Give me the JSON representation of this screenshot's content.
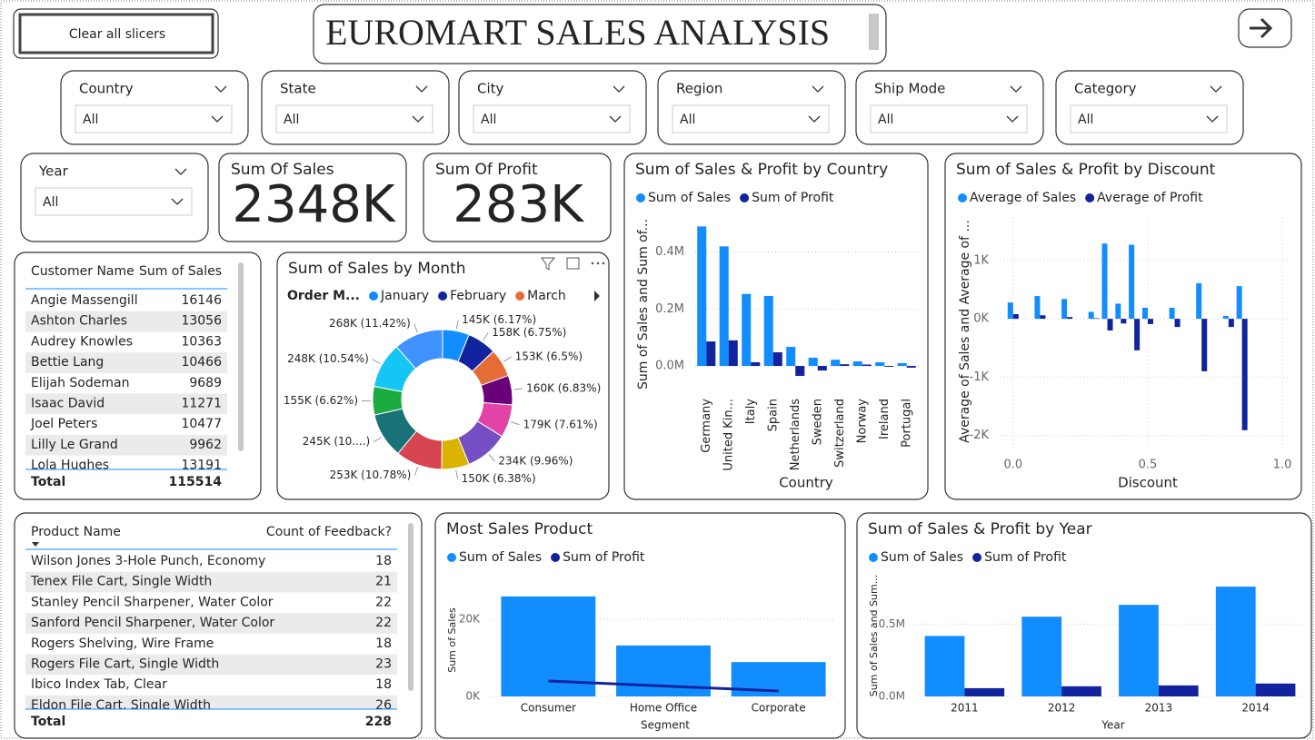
{
  "header": {
    "clear_button": "Clear all slicers",
    "title": "EUROMART SALES ANALYSIS"
  },
  "slicers": [
    {
      "label": "Country",
      "value": "All"
    },
    {
      "label": "State",
      "value": "All"
    },
    {
      "label": "City",
      "value": "All"
    },
    {
      "label": "Region",
      "value": "All"
    },
    {
      "label": "Ship Mode",
      "value": "All"
    },
    {
      "label": "Category",
      "value": "All"
    },
    {
      "label": "Year",
      "value": "All"
    }
  ],
  "cards": [
    {
      "label": "Sum Of Sales",
      "value": "2348K"
    },
    {
      "label": "Sum Of Profit",
      "value": "283K"
    }
  ],
  "customer_table": {
    "columns": [
      "Customer Name",
      "Sum of Sales"
    ],
    "rows": [
      [
        "Angie Massengill",
        16146
      ],
      [
        "Ashton Charles",
        13056
      ],
      [
        "Audrey Knowles",
        10363
      ],
      [
        "Bettie Lang",
        10466
      ],
      [
        "Elijah Sodeman",
        9689
      ],
      [
        "Isaac David",
        11271
      ],
      [
        "Joel Peters",
        10477
      ],
      [
        "Lilly Le Grand",
        9962
      ],
      [
        "Lola Hughes",
        13191
      ]
    ],
    "total_label": "Total",
    "total": 115514
  },
  "product_table": {
    "columns": [
      "Product Name",
      "Count of Feedback?"
    ],
    "rows": [
      [
        "Wilson Jones 3-Hole Punch, Economy",
        18
      ],
      [
        "Tenex File Cart, Single Width",
        21
      ],
      [
        "Stanley Pencil Sharpener, Water Color",
        22
      ],
      [
        "Sanford Pencil Sharpener, Water Color",
        22
      ],
      [
        "Rogers Shelving, Wire Frame",
        18
      ],
      [
        "Rogers File Cart, Single Width",
        23
      ],
      [
        "Ibico Index Tab, Clear",
        18
      ],
      [
        "Eldon File Cart, Single Width",
        26
      ]
    ],
    "total_label": "Total",
    "total": 228
  },
  "chart_data": [
    {
      "type": "bar",
      "title": "Sum of Sales & Profit by Country",
      "x_label": "Country",
      "y_label": "Sum of Sales and Sum of...",
      "categories": [
        "Germany",
        "United Kin...",
        "Italy",
        "Spain",
        "Netherlands",
        "Sweden",
        "Switzerland",
        "Norway",
        "Ireland",
        "Portugal"
      ],
      "series": [
        {
          "name": "Sum of Sales",
          "color": "#118dff",
          "values": [
            490000,
            420000,
            253000,
            246000,
            67000,
            29000,
            22000,
            16000,
            13000,
            10000
          ]
        },
        {
          "name": "Sum of Profit",
          "color": "#12239e",
          "values": [
            86000,
            90000,
            13000,
            48000,
            -35000,
            -16000,
            6000,
            5000,
            -3000,
            -6000
          ]
        }
      ],
      "ylim": [
        -70000,
        520000
      ],
      "yticks": [
        {
          "value": 0,
          "label": "0.0M"
        },
        {
          "value": 200000,
          "label": "0.2M"
        },
        {
          "value": 400000,
          "label": "0.4M"
        }
      ],
      "grid": true
    },
    {
      "type": "bar",
      "title": "Sum of Sales & Profit by Discount",
      "x_label": "Discount",
      "y_label": "Average of Sales and Average of ...",
      "x": [
        0,
        0.1,
        0.2,
        0.3,
        0.35,
        0.4,
        0.45,
        0.5,
        0.6,
        0.7,
        0.8,
        0.85
      ],
      "series": [
        {
          "name": "Average of Sales",
          "color": "#118dff",
          "values": [
            280,
            390,
            340,
            120,
            1290,
            260,
            1270,
            190,
            190,
            610,
            50,
            560
          ]
        },
        {
          "name": "Average of Profit",
          "color": "#12239e",
          "values": [
            80,
            60,
            30,
            10,
            -200,
            -80,
            -540,
            -90,
            -140,
            -900,
            -140,
            -1910
          ]
        }
      ],
      "xlim": [
        -0.05,
        1.03
      ],
      "xticks": [
        {
          "value": 0,
          "label": "0.0"
        },
        0.5,
        {
          "value": 1,
          "label": "1.0"
        }
      ],
      "ylim": [
        -2240,
        1730
      ],
      "yticks": [
        {
          "value": -2000,
          "label": "-2K"
        },
        {
          "value": -1000,
          "label": "-1K"
        },
        {
          "value": 0,
          "label": "0K"
        },
        {
          "value": 1000,
          "label": "1K"
        }
      ],
      "grid": true
    },
    {
      "type": "donut",
      "title": "Sum of Sales by Month",
      "legend_title": "Order M...",
      "categories": [
        "January",
        "February",
        "March",
        null,
        null,
        null,
        null,
        null,
        null,
        null,
        null,
        null
      ],
      "values": [
        145000,
        158000,
        153000,
        160000,
        179000,
        234000,
        150000,
        253000,
        245000,
        155000,
        248000,
        268000
      ],
      "value_labels": [
        "145K (6.17%)",
        "158K (6.75%)",
        "153K (6.5%)",
        "160K (6.83%)",
        "179K (7.61%)",
        "234K (9.96%)",
        "150K (6.38%)",
        "253K (10.78%)",
        "245K (10....)",
        "155K (6.62%)",
        "248K (10.54%)",
        "268K (11.42%)"
      ],
      "colors": [
        "#118dff",
        "#12239e",
        "#e66c37",
        "#6b007b",
        "#e044a7",
        "#744ec2",
        "#d9b300",
        "#d64550",
        "#197278",
        "#1aab40",
        "#15c6f4",
        "#4092ff"
      ]
    },
    {
      "type": "bar",
      "title": "Most Sales Product",
      "x_label": "Segment",
      "y_label": "Sum of Sales",
      "categories": [
        "Consumer",
        "Home Office",
        "Corporate"
      ],
      "series": [
        {
          "name": "Sum of Sales",
          "color": "#118dff",
          "values": [
            25900,
            13200,
            8900
          ]
        },
        {
          "name": "Sum of Profit",
          "color": "#12239e",
          "type": "line",
          "values": [
            4000,
            2700,
            1400
          ]
        }
      ],
      "ylim": [
        0,
        28700
      ],
      "yticks": [
        {
          "value": 0,
          "label": "0K"
        },
        {
          "value": 20000,
          "label": "20K"
        }
      ],
      "grid": true
    },
    {
      "type": "bar",
      "title": "Sum of Sales & Profit by Year",
      "x_label": "Year",
      "y_label": "Sum of Sales and Sum...",
      "categories": [
        "2011",
        "2012",
        "2013",
        "2014"
      ],
      "series": [
        {
          "name": "Sum of Sales",
          "color": "#118dff",
          "values": [
            418000,
            551000,
            633000,
            759000
          ]
        },
        {
          "name": "Sum of Profit",
          "color": "#12239e",
          "values": [
            57000,
            70000,
            76000,
            89000
          ]
        }
      ],
      "ylim": [
        0,
        816000
      ],
      "yticks": [
        {
          "value": 0,
          "label": "0.0M"
        },
        {
          "value": 500000,
          "label": "0.5M"
        }
      ],
      "grid": true
    }
  ]
}
